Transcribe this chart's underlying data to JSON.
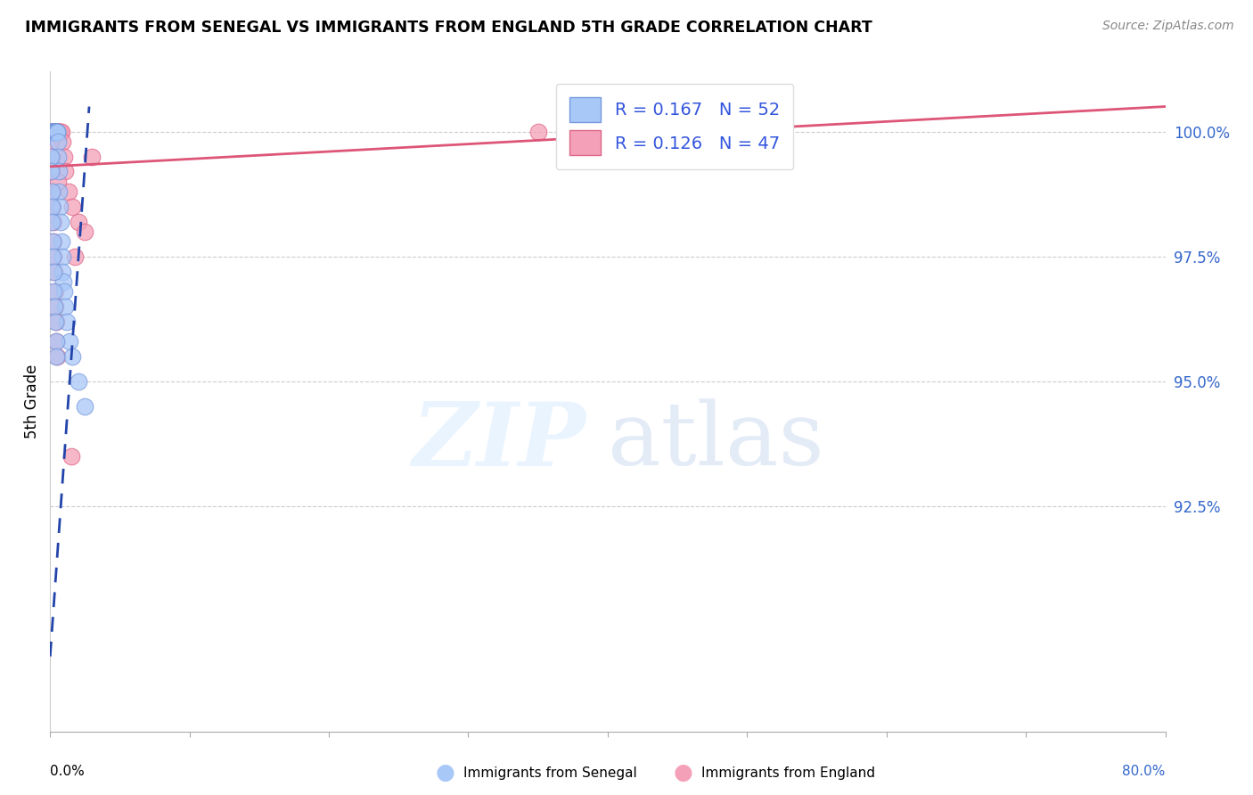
{
  "title": "IMMIGRANTS FROM SENEGAL VS IMMIGRANTS FROM ENGLAND 5TH GRADE CORRELATION CHART",
  "source": "Source: ZipAtlas.com",
  "ylabel": "5th Grade",
  "xlim": [
    0.0,
    80.0
  ],
  "ylim": [
    88.0,
    101.2
  ],
  "ytick_positions": [
    92.5,
    95.0,
    97.5,
    100.0
  ],
  "ytick_labels": [
    "92.5%",
    "95.0%",
    "97.5%",
    "100.0%"
  ],
  "grid_lines": [
    92.5,
    95.0,
    97.5,
    100.0
  ],
  "blue_color": "#a8c8f8",
  "pink_color": "#f4a0b8",
  "blue_edge": "#7799dd",
  "pink_edge": "#dd6688",
  "trendline_blue_color": "#2244aa",
  "trendline_pink_color": "#dd5577",
  "R_senegal": 0.167,
  "N_senegal": 52,
  "R_england": 0.126,
  "N_england": 47,
  "senegal_x": [
    0.05,
    0.08,
    0.1,
    0.12,
    0.14,
    0.15,
    0.17,
    0.18,
    0.2,
    0.22,
    0.25,
    0.28,
    0.3,
    0.33,
    0.35,
    0.38,
    0.4,
    0.42,
    0.45,
    0.48,
    0.5,
    0.52,
    0.55,
    0.58,
    0.6,
    0.65,
    0.7,
    0.75,
    0.8,
    0.85,
    0.9,
    0.95,
    1.0,
    1.1,
    1.2,
    1.4,
    1.6,
    2.0,
    2.5,
    0.05,
    0.07,
    0.09,
    0.11,
    0.13,
    0.16,
    0.19,
    0.23,
    0.26,
    0.31,
    0.36,
    0.41,
    0.46
  ],
  "senegal_y": [
    100.0,
    100.0,
    100.0,
    100.0,
    100.0,
    100.0,
    100.0,
    100.0,
    100.0,
    100.0,
    100.0,
    100.0,
    100.0,
    100.0,
    100.0,
    100.0,
    100.0,
    100.0,
    100.0,
    100.0,
    100.0,
    100.0,
    99.8,
    99.5,
    99.2,
    98.8,
    98.5,
    98.2,
    97.8,
    97.5,
    97.2,
    97.0,
    96.8,
    96.5,
    96.2,
    95.8,
    95.5,
    95.0,
    94.5,
    99.5,
    99.2,
    98.8,
    98.5,
    98.2,
    97.8,
    97.5,
    97.2,
    96.8,
    96.5,
    96.2,
    95.8,
    95.5
  ],
  "england_x": [
    0.05,
    0.08,
    0.1,
    0.13,
    0.16,
    0.19,
    0.22,
    0.25,
    0.28,
    0.32,
    0.36,
    0.4,
    0.44,
    0.48,
    0.52,
    0.56,
    0.6,
    0.65,
    0.7,
    0.75,
    0.8,
    0.9,
    1.0,
    1.1,
    1.3,
    1.6,
    2.0,
    2.5,
    3.0,
    0.06,
    0.09,
    0.12,
    0.15,
    0.18,
    0.21,
    0.24,
    0.27,
    0.3,
    0.34,
    0.38,
    0.42,
    0.46,
    0.5,
    1.5,
    35.0,
    1.8,
    0.55
  ],
  "england_y": [
    100.0,
    100.0,
    100.0,
    100.0,
    100.0,
    100.0,
    100.0,
    100.0,
    100.0,
    100.0,
    100.0,
    100.0,
    100.0,
    100.0,
    100.0,
    100.0,
    100.0,
    100.0,
    100.0,
    100.0,
    100.0,
    99.8,
    99.5,
    99.2,
    98.8,
    98.5,
    98.2,
    98.0,
    99.5,
    99.8,
    99.5,
    99.2,
    98.8,
    98.5,
    98.2,
    97.8,
    97.5,
    97.2,
    96.8,
    96.5,
    96.2,
    95.8,
    95.5,
    93.5,
    100.0,
    97.5,
    99.0
  ],
  "trendline_blue_x0": 0.0,
  "trendline_blue_y0": 89.5,
  "trendline_blue_x1": 2.8,
  "trendline_blue_y1": 100.5,
  "trendline_pink_x0": 0.0,
  "trendline_pink_y0": 99.3,
  "trendline_pink_x1": 80.0,
  "trendline_pink_y1": 100.5
}
